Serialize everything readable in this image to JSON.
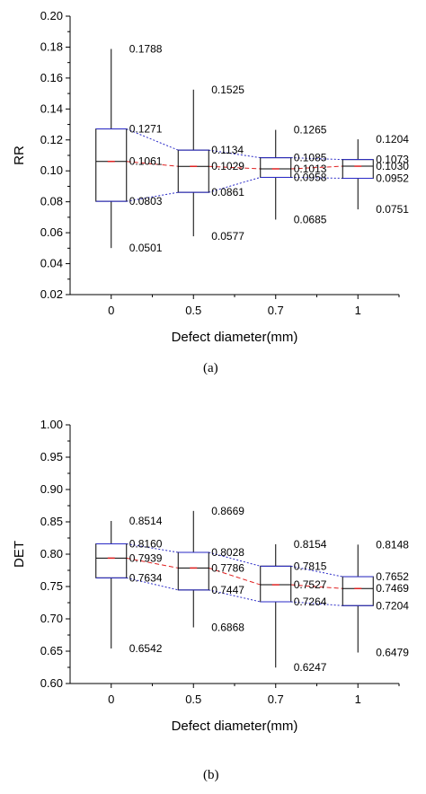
{
  "chart_data": [
    {
      "type": "box",
      "panel_label": "(a)",
      "xlabel": "Defect diameter(mm)",
      "ylabel": "RR",
      "ylim": [
        0.02,
        0.2
      ],
      "yticks": [
        "0.02",
        "0.04",
        "0.06",
        "0.08",
        "0.10",
        "0.12",
        "0.14",
        "0.16",
        "0.18",
        "0.20"
      ],
      "categories": [
        "0",
        "0.5",
        "0.7",
        "1"
      ],
      "boxes": [
        {
          "category": "0",
          "max": 0.1788,
          "q3": 0.1271,
          "median": 0.1061,
          "q1": 0.0803,
          "min": 0.0501,
          "labels": {
            "max": "0.1788",
            "q3": "0.1271",
            "median": "0.1061",
            "q1": "0.0803",
            "min": "0.0501"
          }
        },
        {
          "category": "0.5",
          "max": 0.1525,
          "q3": 0.1134,
          "median": 0.1029,
          "q1": 0.0861,
          "min": 0.0577,
          "labels": {
            "max": "0.1525",
            "q3": "0.1134",
            "median": "0.1029",
            "q1": "0.0861",
            "min": "0.0577"
          }
        },
        {
          "category": "0.7",
          "max": 0.1265,
          "q3": 0.1085,
          "median": 0.1013,
          "q1": 0.0958,
          "min": 0.0685,
          "labels": {
            "max": "0.1265",
            "q3": "0.1085",
            "median": "0.1013",
            "q1": "0.0958",
            "min": "0.0685"
          }
        },
        {
          "category": "1",
          "max": 0.1204,
          "q3": 0.1073,
          "median": 0.103,
          "q1": 0.0952,
          "min": 0.0751,
          "labels": {
            "max": "0.1204",
            "q3": "0.1073",
            "median": "0.1030",
            "q1": "0.0952",
            "min": "0.0751"
          }
        }
      ],
      "colors": {
        "box": "#000000",
        "quartile_lines": "#2b2bc8",
        "median_line": "#e02020"
      }
    },
    {
      "type": "box",
      "panel_label": "(b)",
      "xlabel": "Defect diameter(mm)",
      "ylabel": "DET",
      "ylim": [
        0.6,
        1.0
      ],
      "yticks": [
        "0.60",
        "0.65",
        "0.70",
        "0.75",
        "0.80",
        "0.85",
        "0.90",
        "0.95",
        "1.00"
      ],
      "categories": [
        "0",
        "0.5",
        "0.7",
        "1"
      ],
      "boxes": [
        {
          "category": "0",
          "max": 0.8514,
          "q3": 0.816,
          "median": 0.7939,
          "q1": 0.7634,
          "min": 0.6542,
          "labels": {
            "max": "0.8514",
            "q3": "0.8160",
            "median": "0.7939",
            "q1": "0.7634",
            "min": "0.6542"
          }
        },
        {
          "category": "0.5",
          "max": 0.8669,
          "q3": 0.8028,
          "median": 0.7786,
          "q1": 0.7447,
          "min": 0.6868,
          "labels": {
            "max": "0.8669",
            "q3": "0.8028",
            "median": "0.7786",
            "q1": "0.7447",
            "min": "0.6868"
          }
        },
        {
          "category": "0.7",
          "max": 0.8154,
          "q3": 0.7815,
          "median": 0.7527,
          "q1": 0.7264,
          "min": 0.6247,
          "labels": {
            "max": "0.8154",
            "q3": "0.7815",
            "median": "0.7527",
            "q1": "0.7264",
            "min": "0.6247"
          }
        },
        {
          "category": "1",
          "max": 0.8148,
          "q3": 0.7652,
          "median": 0.7469,
          "q1": 0.7204,
          "min": 0.6479,
          "labels": {
            "max": "0.8148",
            "q3": "0.7652",
            "median": "0.7469",
            "q1": "0.7204",
            "min": "0.6479"
          }
        }
      ],
      "colors": {
        "box": "#000000",
        "quartile_lines": "#2b2bc8",
        "median_line": "#e02020"
      }
    }
  ]
}
